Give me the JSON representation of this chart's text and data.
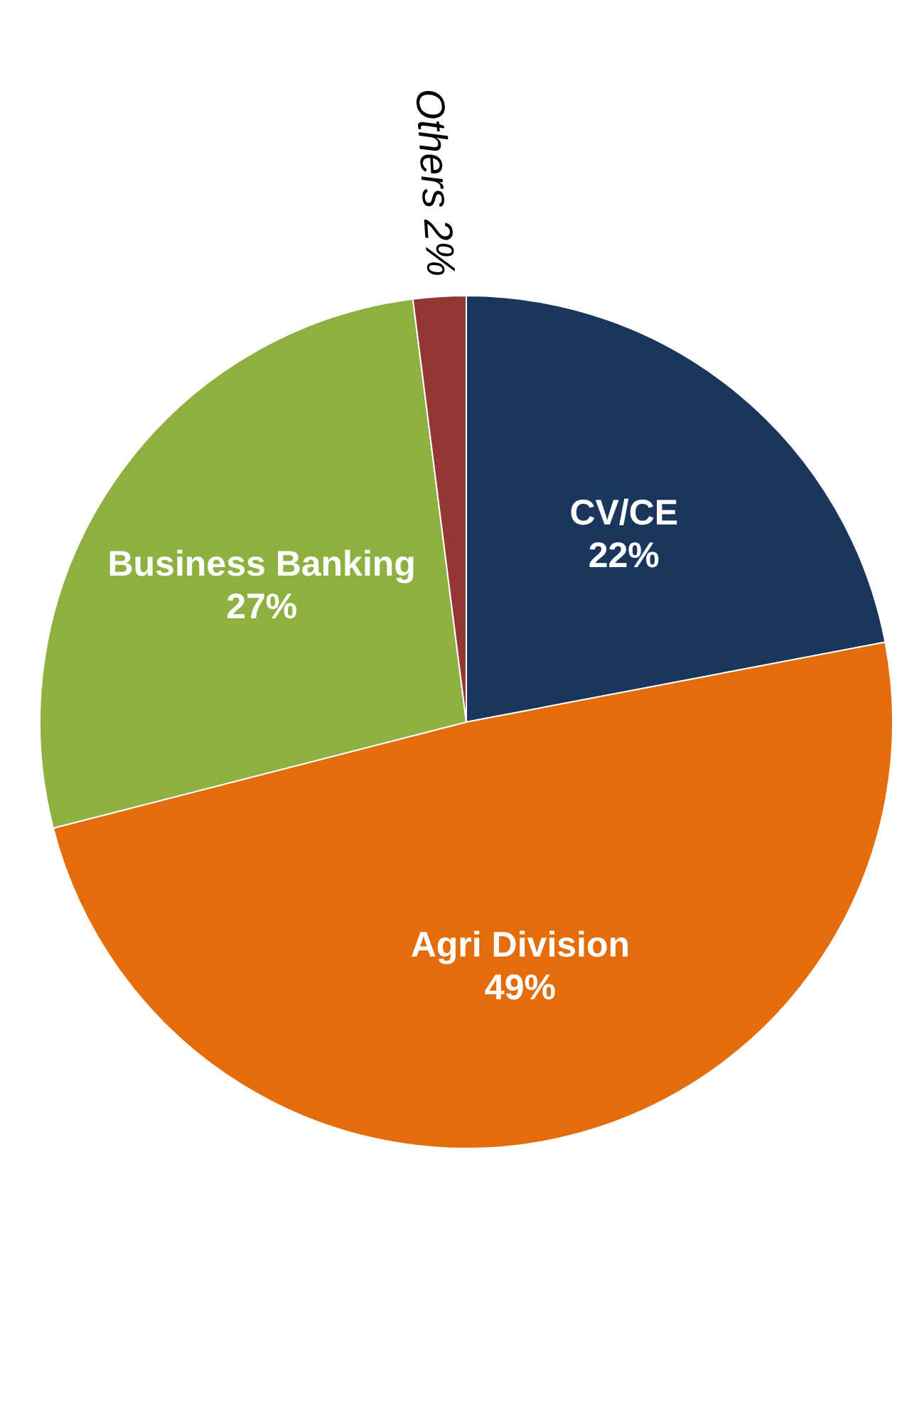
{
  "chart_data": {
    "type": "pie",
    "categories": [
      "CV/CE",
      "Agri Division",
      "Business Banking",
      "Others"
    ],
    "values": [
      22,
      49,
      27,
      2
    ],
    "colors": [
      "#1b365d",
      "#e46c0a",
      "#8db040",
      "#943634"
    ],
    "value_labels": [
      "22%",
      "49%",
      "27%",
      "2%"
    ]
  }
}
